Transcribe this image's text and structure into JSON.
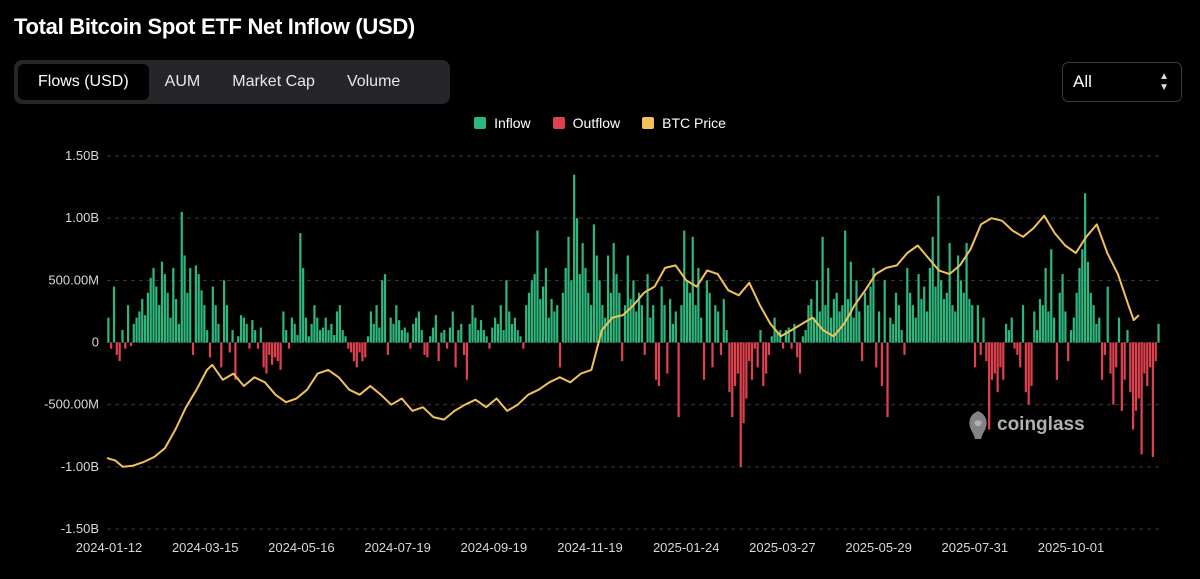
{
  "title": "Total Bitcoin Spot ETF Net Inflow (USD)",
  "tabs": [
    {
      "label": "Flows (USD)",
      "active": true
    },
    {
      "label": "AUM",
      "active": false
    },
    {
      "label": "Market Cap",
      "active": false
    },
    {
      "label": "Volume",
      "active": false
    }
  ],
  "range_select": {
    "value": "All"
  },
  "watermark": "coinglass",
  "colors": {
    "inflow": "#2fb67d",
    "outflow": "#e0414f",
    "price": "#f2c15a",
    "grid": "#3a3a3a"
  },
  "chart_data": {
    "type": "bar",
    "legend": [
      {
        "name": "Inflow",
        "color": "#2fb67d"
      },
      {
        "name": "Outflow",
        "color": "#e0414f"
      },
      {
        "name": "BTC Price",
        "color": "#f2c15a",
        "kind": "line"
      }
    ],
    "y_ticks": [
      "1.50B",
      "1.00B",
      "500.00M",
      "0",
      "-500.00M",
      "-1.00B",
      "-1.50B"
    ],
    "y_tick_values": [
      1.5,
      1.0,
      0.5,
      0,
      -0.5,
      -1.0,
      -1.5
    ],
    "ylim": [
      -1.5,
      1.5
    ],
    "x_ticks": [
      "2024-01-12",
      "2024-03-15",
      "2024-05-16",
      "2024-07-19",
      "2024-09-19",
      "2024-11-19",
      "2025-01-24",
      "2025-03-27",
      "2025-05-29",
      "2025-07-31",
      "2025-10-01"
    ],
    "flows_billion_usd": [
      0.2,
      -0.05,
      0.45,
      -0.1,
      -0.15,
      0.1,
      -0.05,
      0.3,
      -0.03,
      0.15,
      0.2,
      0.25,
      0.35,
      0.22,
      0.4,
      0.52,
      0.6,
      0.45,
      0.3,
      0.65,
      0.55,
      0.4,
      0.2,
      0.6,
      0.35,
      0.15,
      1.05,
      0.7,
      0.4,
      0.6,
      -0.1,
      0.62,
      0.55,
      0.42,
      0.3,
      0.1,
      -0.12,
      0.45,
      0.3,
      0.15,
      -0.2,
      0.5,
      0.3,
      -0.08,
      0.1,
      -0.3,
      0.05,
      0.22,
      0.2,
      0.15,
      -0.05,
      0.18,
      0.1,
      -0.05,
      0.12,
      -0.2,
      -0.25,
      -0.1,
      -0.18,
      -0.12,
      -0.15,
      -0.22,
      0.25,
      0.1,
      -0.05,
      0.2,
      0.15,
      0.06,
      0.88,
      0.6,
      0.2,
      0.05,
      0.15,
      0.3,
      0.2,
      0.1,
      0.12,
      0.2,
      0.1,
      0.15,
      0.06,
      0.25,
      0.3,
      0.1,
      0.05,
      -0.05,
      -0.08,
      -0.15,
      -0.2,
      -0.08,
      -0.15,
      -0.12,
      0.05,
      0.25,
      0.15,
      0.3,
      0.12,
      0.5,
      0.55,
      -0.1,
      0.2,
      0.15,
      0.3,
      0.18,
      0.1,
      0.12,
      0.08,
      -0.05,
      0.15,
      0.2,
      0.25,
      0.1,
      -0.1,
      -0.12,
      0.05,
      0.12,
      0.22,
      -0.15,
      0.08,
      0.1,
      -0.05,
      0.12,
      0.25,
      -0.2,
      0.1,
      0.15,
      -0.1,
      -0.3,
      0.15,
      0.3,
      0.2,
      0.1,
      0.18,
      0.1,
      0.05,
      -0.05,
      0.12,
      0.2,
      0.15,
      0.3,
      0.1,
      0.5,
      0.25,
      0.15,
      0.2,
      0.1,
      0.05,
      -0.05,
      0.3,
      0.4,
      0.5,
      0.55,
      0.9,
      0.35,
      0.45,
      0.6,
      0.2,
      0.35,
      0.25,
      0.3,
      -0.2,
      0.4,
      0.6,
      0.85,
      0.5,
      1.35,
      1.0,
      0.55,
      0.8,
      0.6,
      0.4,
      0.3,
      0.95,
      0.7,
      0.5,
      0.3,
      0.2,
      0.7,
      0.4,
      0.8,
      0.55,
      0.4,
      -0.15,
      0.3,
      0.7,
      0.35,
      0.5,
      0.25,
      0.4,
      0.3,
      -0.1,
      0.55,
      0.2,
      0.3,
      -0.3,
      -0.35,
      0.45,
      0.3,
      -0.25,
      0.35,
      0.15,
      0.25,
      -0.6,
      0.3,
      0.9,
      0.5,
      0.4,
      0.85,
      0.3,
      0.6,
      0.2,
      -0.3,
      0.5,
      0.4,
      -0.2,
      0.3,
      0.25,
      -0.1,
      0.35,
      0.1,
      -0.4,
      -0.6,
      -0.35,
      -0.25,
      -1.0,
      -0.65,
      -0.45,
      -0.15,
      -0.3,
      -0.05,
      -0.2,
      0.1,
      -0.35,
      -0.25,
      -0.1,
      0.05,
      0.2,
      0.08,
      0.1,
      -0.05,
      0.1,
      0.12,
      -0.05,
      0.15,
      -0.12,
      -0.25,
      0.05,
      0.1,
      0.3,
      0.35,
      0.2,
      0.5,
      0.25,
      0.85,
      0.3,
      0.6,
      0.2,
      0.35,
      0.4,
      0.25,
      0.3,
      0.9,
      0.35,
      0.65,
      0.2,
      0.5,
      0.25,
      -0.15,
      0.4,
      0.3,
      0.45,
      0.6,
      -0.2,
      0.25,
      -0.35,
      0.5,
      -0.6,
      0.2,
      0.15,
      0.4,
      0.3,
      0.1,
      -0.1,
      0.6,
      0.4,
      0.3,
      0.2,
      0.55,
      0.35,
      0.45,
      0.25,
      0.6,
      0.85,
      0.45,
      1.18,
      0.5,
      0.35,
      0.4,
      0.8,
      0.3,
      0.25,
      0.7,
      0.5,
      0.4,
      0.8,
      0.35,
      0.3,
      -0.2,
      0.3,
      -0.1,
      0.2,
      -0.15,
      -0.7,
      -0.3,
      -0.25,
      -0.4,
      -0.2,
      -0.3,
      0.15,
      0.1,
      0.2,
      -0.05,
      -0.1,
      -0.2,
      0.3,
      -0.4,
      -0.5,
      -0.35,
      0.25,
      0.1,
      0.35,
      0.3,
      0.6,
      0.25,
      0.75,
      0.2,
      -0.3,
      0.4,
      0.55,
      0.25,
      -0.15,
      0.1,
      0.2,
      0.4,
      0.6,
      0.75,
      1.2,
      0.65,
      0.4,
      0.3,
      0.15,
      0.2,
      -0.3,
      -0.1,
      0.45,
      -0.25,
      -0.5,
      -0.2,
      0.2,
      -0.55,
      -0.3,
      0.1,
      -0.4,
      -0.7,
      -0.55,
      -0.45,
      -0.9,
      -0.25,
      -0.35,
      -0.2,
      -0.92,
      -0.15,
      0.15
    ],
    "btc_price_path_in_flow_units": [
      [
        0,
        -0.93
      ],
      [
        0.008,
        -0.95
      ],
      [
        0.015,
        -1.0
      ],
      [
        0.025,
        -0.99
      ],
      [
        0.035,
        -0.96
      ],
      [
        0.045,
        -0.92
      ],
      [
        0.055,
        -0.85
      ],
      [
        0.065,
        -0.7
      ],
      [
        0.075,
        -0.52
      ],
      [
        0.085,
        -0.38
      ],
      [
        0.095,
        -0.22
      ],
      [
        0.1,
        -0.18
      ],
      [
        0.11,
        -0.3
      ],
      [
        0.12,
        -0.25
      ],
      [
        0.13,
        -0.35
      ],
      [
        0.14,
        -0.28
      ],
      [
        0.15,
        -0.32
      ],
      [
        0.16,
        -0.42
      ],
      [
        0.17,
        -0.48
      ],
      [
        0.18,
        -0.45
      ],
      [
        0.19,
        -0.38
      ],
      [
        0.2,
        -0.25
      ],
      [
        0.21,
        -0.22
      ],
      [
        0.22,
        -0.28
      ],
      [
        0.23,
        -0.38
      ],
      [
        0.24,
        -0.42
      ],
      [
        0.25,
        -0.35
      ],
      [
        0.26,
        -0.42
      ],
      [
        0.27,
        -0.5
      ],
      [
        0.28,
        -0.45
      ],
      [
        0.29,
        -0.55
      ],
      [
        0.3,
        -0.52
      ],
      [
        0.31,
        -0.6
      ],
      [
        0.32,
        -0.62
      ],
      [
        0.33,
        -0.55
      ],
      [
        0.34,
        -0.5
      ],
      [
        0.35,
        -0.46
      ],
      [
        0.36,
        -0.52
      ],
      [
        0.37,
        -0.45
      ],
      [
        0.38,
        -0.55
      ],
      [
        0.39,
        -0.5
      ],
      [
        0.4,
        -0.42
      ],
      [
        0.41,
        -0.38
      ],
      [
        0.42,
        -0.32
      ],
      [
        0.43,
        -0.28
      ],
      [
        0.44,
        -0.32
      ],
      [
        0.45,
        -0.25
      ],
      [
        0.46,
        -0.22
      ],
      [
        0.47,
        0.1
      ],
      [
        0.48,
        0.2
      ],
      [
        0.49,
        0.22
      ],
      [
        0.5,
        0.3
      ],
      [
        0.51,
        0.4
      ],
      [
        0.52,
        0.45
      ],
      [
        0.53,
        0.6
      ],
      [
        0.54,
        0.62
      ],
      [
        0.55,
        0.5
      ],
      [
        0.56,
        0.45
      ],
      [
        0.57,
        0.58
      ],
      [
        0.58,
        0.55
      ],
      [
        0.59,
        0.42
      ],
      [
        0.6,
        0.38
      ],
      [
        0.61,
        0.48
      ],
      [
        0.62,
        0.3
      ],
      [
        0.63,
        0.15
      ],
      [
        0.64,
        0.05
      ],
      [
        0.65,
        0.1
      ],
      [
        0.66,
        0.15
      ],
      [
        0.67,
        0.2
      ],
      [
        0.68,
        0.1
      ],
      [
        0.69,
        0.05
      ],
      [
        0.7,
        0.15
      ],
      [
        0.71,
        0.3
      ],
      [
        0.72,
        0.42
      ],
      [
        0.73,
        0.55
      ],
      [
        0.74,
        0.6
      ],
      [
        0.75,
        0.62
      ],
      [
        0.76,
        0.72
      ],
      [
        0.77,
        0.78
      ],
      [
        0.78,
        0.68
      ],
      [
        0.79,
        0.58
      ],
      [
        0.8,
        0.55
      ],
      [
        0.81,
        0.62
      ],
      [
        0.82,
        0.75
      ],
      [
        0.83,
        0.95
      ],
      [
        0.84,
        1.0
      ],
      [
        0.85,
        0.98
      ],
      [
        0.86,
        0.9
      ],
      [
        0.87,
        0.85
      ],
      [
        0.88,
        0.92
      ],
      [
        0.89,
        1.02
      ],
      [
        0.9,
        0.88
      ],
      [
        0.91,
        0.78
      ],
      [
        0.92,
        0.72
      ],
      [
        0.93,
        0.85
      ],
      [
        0.94,
        0.95
      ],
      [
        0.95,
        0.72
      ],
      [
        0.96,
        0.55
      ],
      [
        0.97,
        0.3
      ],
      [
        0.975,
        0.18
      ],
      [
        0.98,
        0.22
      ]
    ]
  }
}
